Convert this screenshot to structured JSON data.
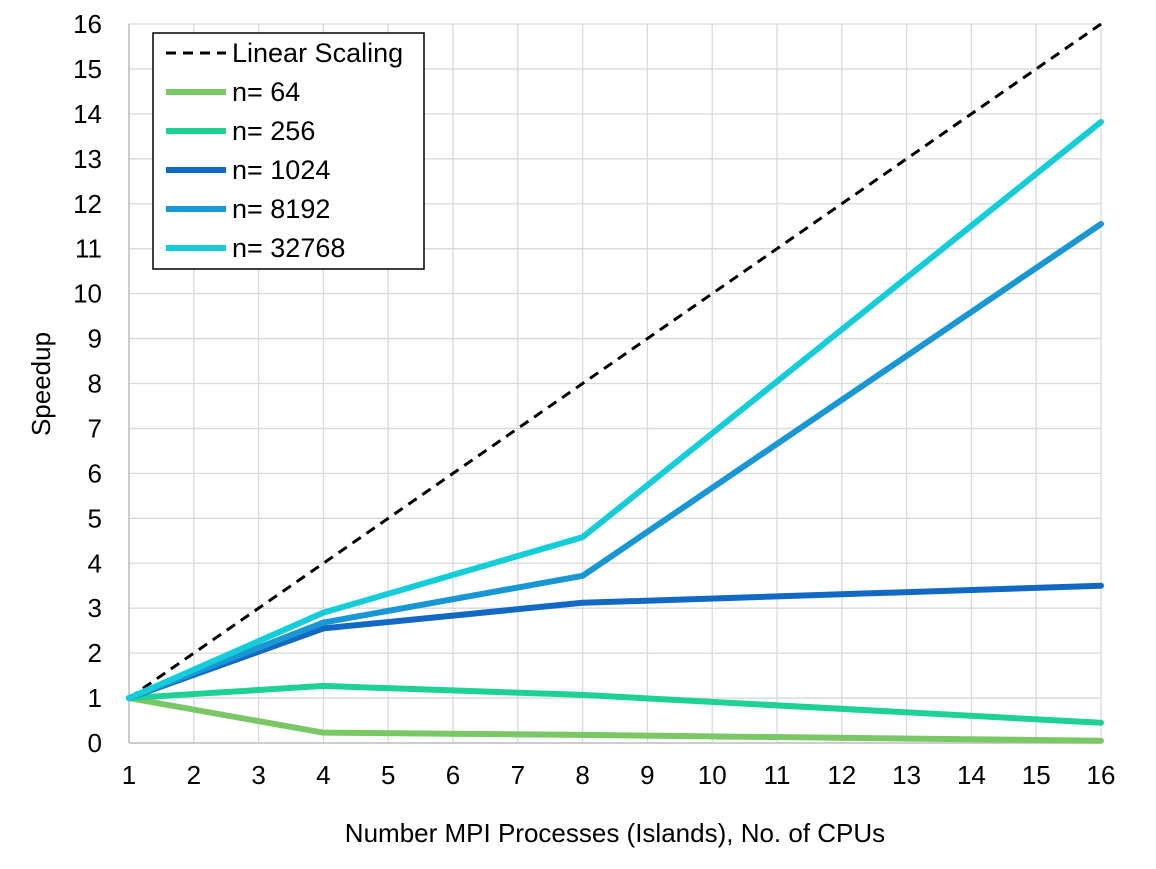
{
  "chart_data": {
    "type": "line",
    "xlabel": "Number MPI Processes (Islands), No. of CPUs",
    "ylabel": "Speedup",
    "xlim": [
      1,
      16
    ],
    "ylim": [
      0,
      16
    ],
    "x_ticks": [
      "1",
      "2",
      "3",
      "4",
      "5",
      "6",
      "7",
      "8",
      "9",
      "10",
      "11",
      "12",
      "13",
      "14",
      "15",
      "16"
    ],
    "y_ticks": [
      "0",
      "1",
      "2",
      "3",
      "4",
      "5",
      "6",
      "7",
      "8",
      "9",
      "10",
      "11",
      "12",
      "13",
      "14",
      "15",
      "16"
    ],
    "grid": true,
    "legend_position": "top-left",
    "series": [
      {
        "name": "Linear Scaling",
        "x": [
          1,
          16
        ],
        "y": [
          1,
          16
        ],
        "color": "#000000",
        "dashed": true
      },
      {
        "name": "n= 64",
        "x": [
          1,
          4,
          8,
          16
        ],
        "y": [
          1.0,
          0.23,
          0.18,
          0.05
        ],
        "color": "#7ac865"
      },
      {
        "name": "n= 256",
        "x": [
          1,
          4,
          8,
          16
        ],
        "y": [
          1.0,
          1.27,
          1.07,
          0.45
        ],
        "color": "#1ed196"
      },
      {
        "name": "n= 1024",
        "x": [
          1,
          4,
          8,
          16
        ],
        "y": [
          1.0,
          2.55,
          3.12,
          3.5
        ],
        "color": "#1269c4"
      },
      {
        "name": "n= 8192",
        "x": [
          1,
          4,
          8,
          16
        ],
        "y": [
          1.0,
          2.68,
          3.72,
          11.55
        ],
        "color": "#1897d4"
      },
      {
        "name": "n= 32768",
        "x": [
          1,
          4,
          8,
          16
        ],
        "y": [
          1.0,
          2.9,
          4.58,
          13.82
        ],
        "color": "#14cdd8"
      }
    ]
  }
}
